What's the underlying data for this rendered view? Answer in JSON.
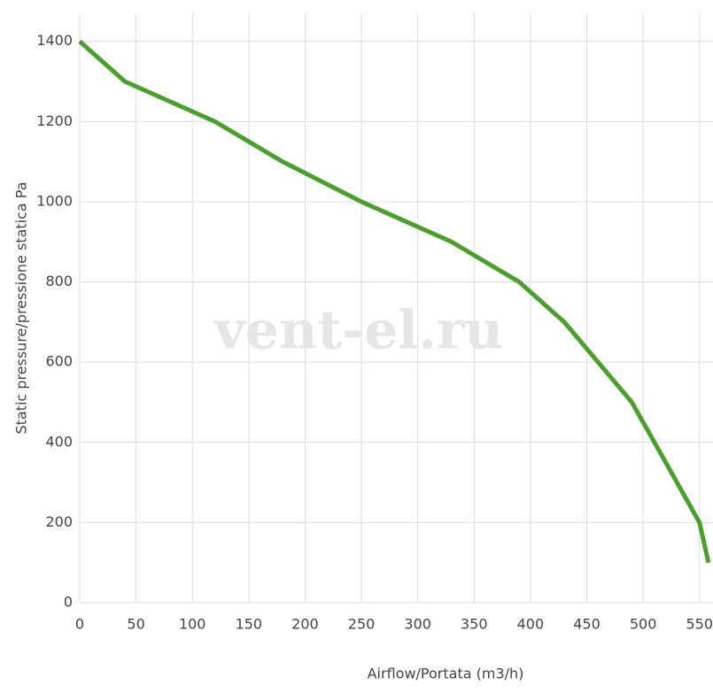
{
  "chart_data": {
    "type": "line",
    "x_label": "Airflow/Portata (m3/h)",
    "y_label": "Static pressure/pressione statica Pa",
    "watermark": "vent-el.ru",
    "x": [
      0,
      40,
      120,
      180,
      250,
      330,
      390,
      430,
      490,
      550,
      558
    ],
    "series": [
      {
        "color": "#4aa02c",
        "values": [
          1400,
          1300,
          1200,
          1100,
          1000,
          900,
          800,
          700,
          500,
          200,
          100
        ]
      }
    ],
    "xlim": [
      0,
      562
    ],
    "xticks": [
      0,
      50,
      100,
      150,
      200,
      250,
      300,
      350,
      400,
      450,
      500,
      550
    ],
    "ylim": [
      0,
      1470
    ],
    "yticks": [
      0,
      200,
      400,
      600,
      800,
      1000,
      1200,
      1400
    ],
    "grid": true
  }
}
